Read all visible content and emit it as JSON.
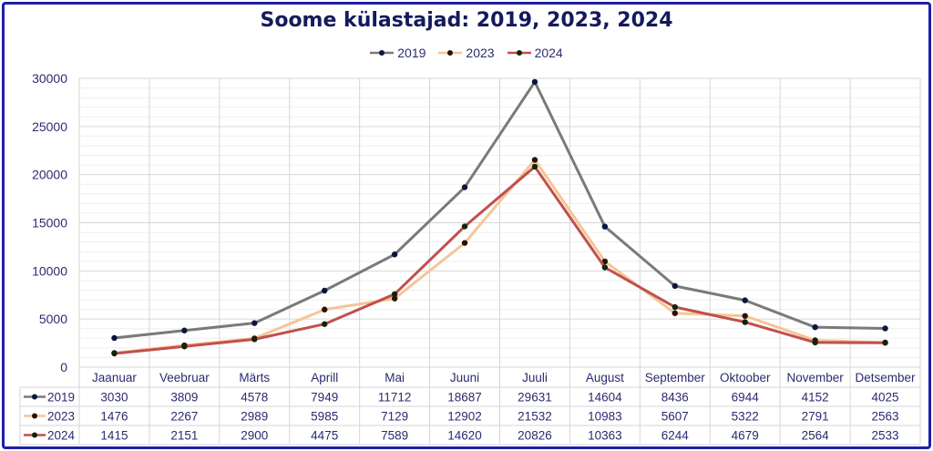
{
  "chart_data": {
    "type": "line",
    "title": "Soome külastajad: 2019, 2023, 2024",
    "categories": [
      "Jaanuar",
      "Veebruar",
      "Märts",
      "Aprill",
      "Mai",
      "Juuni",
      "Juuli",
      "August",
      "September",
      "Oktoober",
      "November",
      "Detsember"
    ],
    "series": [
      {
        "name": "2019",
        "values": [
          3030,
          3809,
          4578,
          7949,
          11712,
          18687,
          29631,
          14604,
          8436,
          6944,
          4152,
          4025
        ],
        "color": "#7a7a7a"
      },
      {
        "name": "2023",
        "values": [
          1476,
          2267,
          2989,
          5985,
          7129,
          12902,
          21532,
          10983,
          5607,
          5322,
          2791,
          2563
        ],
        "color": "#f5c596"
      },
      {
        "name": "2024",
        "values": [
          1415,
          2151,
          2900,
          4475,
          7589,
          14620,
          20826,
          10363,
          6244,
          4679,
          2564,
          2533
        ],
        "color": "#c0504d"
      }
    ],
    "yticks": [
      0,
      5000,
      10000,
      15000,
      20000,
      25000,
      30000
    ],
    "ylim": [
      0,
      30000
    ],
    "grid": true,
    "legend": "top-center",
    "data_table": true
  }
}
